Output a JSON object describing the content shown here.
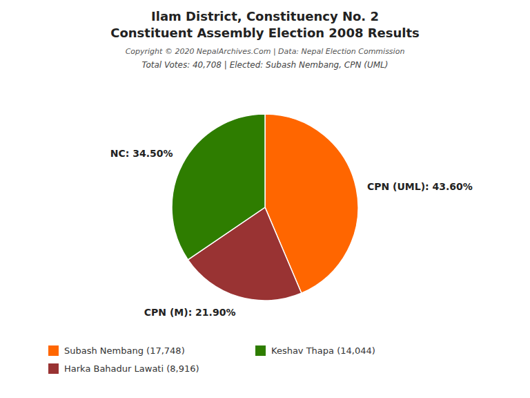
{
  "chart_data": {
    "type": "pie",
    "title": [
      "Ilam District, Constituency No. 2",
      "Constituent Assembly Election 2008 Results"
    ],
    "annotations": [
      "Copyright © 2020 NepalArchives.Com | Data: Nepal Election Commission"
    ],
    "subtitle": "Total Votes: 40,708 | Elected: Subash Nembang, CPN (UML)",
    "values": [
      43.6,
      21.9,
      34.5
    ],
    "value_labels": [
      "CPN (UML): 43.60%",
      "CPN (M): 21.90%",
      "NC: 34.50%"
    ],
    "colors": [
      "#FF6600",
      "#993333",
      "#2E7D00"
    ],
    "data_labels": true,
    "legend": "lower left",
    "legend_entries": [
      {
        "label": "Subash Nembang (17,748)",
        "color": "#FF6600"
      },
      {
        "label": "Keshav Thapa (14,044)",
        "color": "#2E7D00"
      },
      {
        "label": "Harka Bahadur Lawati (8,916)",
        "color": "#993333"
      }
    ]
  }
}
